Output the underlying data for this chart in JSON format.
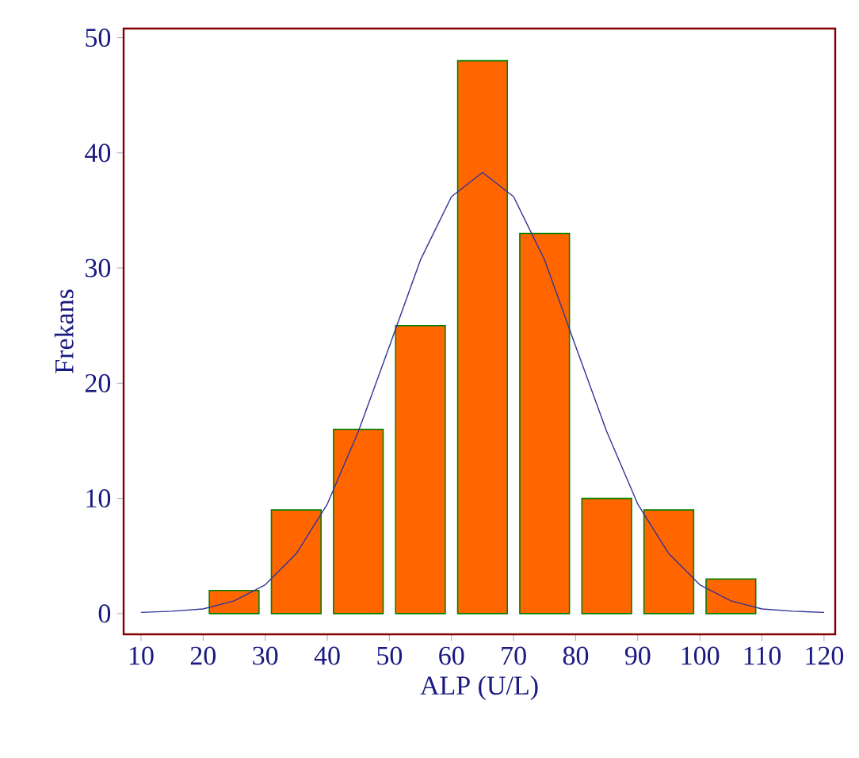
{
  "chart_data": {
    "type": "histogram",
    "xlabel": "ALP (U/L)",
    "ylabel": "Frekans",
    "color": "#ff6600",
    "bins": [
      20,
      30,
      40,
      50,
      60,
      70,
      80,
      90,
      100,
      110
    ],
    "values": [
      2,
      9,
      16,
      25,
      48,
      33,
      10,
      9,
      3
    ],
    "series": [
      {
        "type": "line",
        "color": "#333399",
        "marker": "none",
        "x": [
          10,
          15,
          20,
          25,
          30,
          35,
          40,
          45,
          50,
          55,
          60,
          65,
          70,
          75,
          80,
          85,
          90,
          95,
          100,
          105,
          110,
          115,
          120
        ],
        "values": [
          0.1,
          0.2,
          0.4,
          1.1,
          2.5,
          5.2,
          9.5,
          15.8,
          23.2,
          30.7,
          36.2,
          38.3,
          36.2,
          30.7,
          23.2,
          15.8,
          9.5,
          5.2,
          2.5,
          1.1,
          0.4,
          0.2,
          0.1
        ]
      }
    ],
    "xlim": [
      7.2,
      121.8
    ],
    "ylim": [
      -1.8,
      50.8
    ],
    "xticks": [
      10,
      20,
      30,
      40,
      50,
      60,
      70,
      80,
      90,
      100,
      110,
      120
    ],
    "yticks": [
      0,
      10,
      20,
      30,
      40,
      50
    ],
    "grid": false
  }
}
